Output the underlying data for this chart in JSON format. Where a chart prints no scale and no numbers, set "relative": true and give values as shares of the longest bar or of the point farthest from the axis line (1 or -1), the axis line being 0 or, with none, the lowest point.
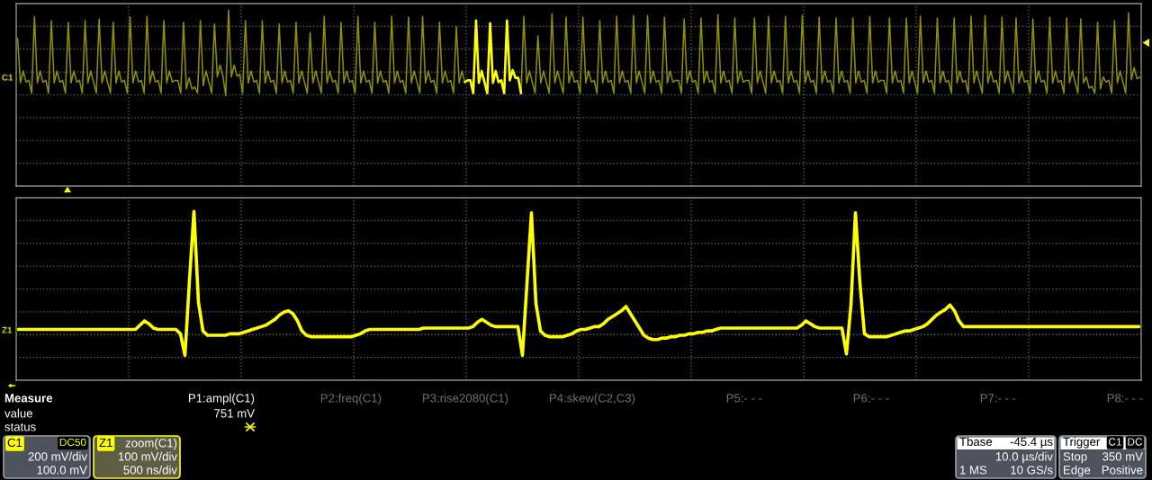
{
  "chart_data": [
    {
      "type": "line",
      "relative": true,
      "grid": true,
      "tick_labels": false,
      "categories": [
        null,
        null,
        null,
        null,
        null,
        null,
        null,
        null,
        null,
        null,
        null,
        null,
        null,
        null,
        null,
        null,
        null,
        null,
        null,
        null,
        null,
        null,
        null,
        null,
        null,
        null,
        null,
        null,
        null,
        null,
        null,
        null,
        null,
        null,
        null,
        null,
        null,
        null,
        null,
        null,
        null,
        null,
        null,
        null,
        null,
        null,
        null,
        null,
        null,
        null,
        null,
        null,
        null,
        null,
        null,
        null,
        null,
        null,
        null,
        null,
        null,
        null,
        null,
        null,
        null,
        null,
        null,
        null,
        null,
        null,
        null,
        null,
        null,
        null,
        null,
        null,
        null,
        null,
        null,
        null,
        null,
        null,
        null,
        null,
        null,
        null,
        null,
        null,
        null,
        null,
        null,
        null,
        null,
        null,
        null,
        null,
        null,
        null,
        null,
        null,
        null,
        null,
        null,
        null,
        null,
        null,
        null,
        null,
        null,
        null,
        null,
        null,
        null,
        null,
        null,
        null,
        null,
        null,
        null,
        null,
        null,
        null,
        null,
        null,
        null,
        null,
        null,
        null,
        null,
        null,
        null,
        null,
        null,
        null,
        null,
        null,
        null,
        null,
        null,
        null,
        null,
        null,
        null,
        null,
        null,
        null,
        null,
        null,
        null,
        null,
        null,
        null,
        null,
        null,
        null,
        null,
        null,
        null,
        null,
        null,
        null,
        null,
        null,
        null,
        null,
        null,
        null,
        null,
        null,
        null,
        null,
        null,
        null,
        null,
        null,
        null,
        null,
        null,
        null,
        null,
        null,
        null,
        null,
        null,
        null,
        null,
        null,
        null,
        null,
        null,
        null,
        null,
        null,
        null,
        null,
        null,
        null,
        null,
        null,
        null,
        null,
        null,
        null,
        null,
        null,
        null,
        null,
        null,
        null,
        null,
        null,
        null,
        null,
        null,
        null,
        null,
        null,
        null,
        null,
        null,
        null,
        null,
        null,
        null,
        null,
        null,
        null,
        null,
        null,
        null,
        null,
        null,
        null,
        null,
        null,
        null,
        null,
        null,
        null,
        null,
        null,
        null,
        null,
        null,
        null,
        null,
        null,
        null,
        null,
        null,
        null,
        null,
        null,
        null,
        null,
        null,
        null,
        null,
        null,
        null,
        null,
        null,
        null,
        null,
        null,
        null,
        null,
        null,
        null,
        null,
        null,
        null,
        null,
        null,
        null,
        null,
        null,
        null,
        null,
        null,
        null,
        null,
        null,
        null,
        null,
        null,
        null,
        null,
        null,
        null,
        null,
        null,
        null,
        null,
        null,
        null,
        null,
        null,
        null,
        null,
        null,
        null,
        null,
        null,
        null,
        null,
        null,
        null,
        null,
        null,
        null,
        null,
        null,
        null,
        null,
        null,
        null,
        null,
        null,
        null,
        null,
        null,
        null,
        null,
        null,
        null,
        null,
        null,
        null,
        null,
        null,
        null,
        null,
        null,
        null,
        null,
        null,
        null,
        null,
        null,
        null,
        null,
        null,
        null,
        null,
        null,
        null,
        null,
        null,
        null,
        null,
        null,
        null,
        null,
        null,
        null,
        null,
        null,
        null,
        null,
        null,
        null,
        null,
        null,
        null,
        null,
        null,
        null,
        null,
        null,
        null,
        null,
        null,
        null,
        null,
        null,
        null,
        null,
        null,
        null,
        null,
        null,
        null,
        null,
        null,
        null,
        null,
        null,
        null,
        null,
        null,
        null,
        null,
        null,
        null,
        null,
        null,
        null,
        null,
        null
      ],
      "series": [
        {
          "color": "#8f8f00",
          "values": [
            0.67,
            0.15,
            0.29,
            0.16,
            0.18,
            0.03,
            0.93,
            0.15,
            0.29,
            0.16,
            0.18,
            0.03,
            0.88,
            0.15,
            0.29,
            0.16,
            0.18,
            0.03,
            0.86,
            0.15,
            0.29,
            0.16,
            0.18,
            0.03,
            0.88,
            0.15,
            0.29,
            0.16,
            0.03,
            0.9,
            0.15,
            0.29,
            0.16,
            0.03,
            0.86,
            0.15,
            0.29,
            0.16,
            0.18,
            0.03,
            0.92,
            0.15,
            0.29,
            0.16,
            0.18,
            0.03,
            0.93,
            0.15,
            0.29,
            0.16,
            0.18,
            0.03,
            0.88,
            0.15,
            0.29,
            0.16,
            0.18,
            0.18,
            0.03,
            0.86,
            0.08,
            0.21,
            0.08,
            0.1,
            0.03,
            0.88,
            0.12,
            0.29,
            0.16,
            0.03,
            0.84,
            0.22,
            0.36,
            0.23,
            0.0,
            1.0,
            0.22,
            0.36,
            0.23,
            0.25,
            0.03,
            0.88,
            0.15,
            0.29,
            0.16,
            0.18,
            0.03,
            0.88,
            0.15,
            0.29,
            0.16,
            0.18,
            0.03,
            0.84,
            0.15,
            0.29,
            0.16,
            0.18,
            0.03,
            0.86,
            0.15,
            0.29,
            0.16,
            0.03,
            0.74,
            0.15,
            0.29,
            0.16,
            0.03,
            0.93,
            0.15,
            0.29,
            0.16,
            0.18,
            0.03,
            0.86,
            0.15,
            0.29,
            0.16,
            0.18,
            0.03,
            0.93,
            0.15,
            0.29,
            0.16,
            0.18,
            0.03,
            0.86,
            0.15,
            0.29,
            0.16,
            0.18,
            0.03,
            0.93,
            0.15,
            0.29,
            0.16,
            0.18,
            0.03,
            0.92,
            0.15,
            0.29,
            0.16,
            0.03,
            0.93,
            0.15,
            0.29,
            0.16,
            0.18,
            0.03,
            0.86,
            0.15,
            0.29,
            0.16,
            0.18,
            0.03,
            0.81,
            0.15,
            0.29,
            0.16,
            null,
            null,
            null,
            null,
            null,
            null,
            null,
            null,
            null,
            null,
            null,
            null,
            null,
            null,
            null,
            null,
            null,
            null,
            null,
            0.03,
            0.93,
            0.15,
            0.29,
            0.16,
            0.03,
            0.7,
            0.15,
            0.29,
            0.16,
            0.03,
            0.96,
            0.15,
            0.29,
            0.16,
            0.03,
            0.92,
            0.15,
            0.29,
            0.16,
            0.18,
            0.03,
            0.92,
            0.15,
            0.29,
            0.16,
            0.18,
            0.03,
            0.88,
            0.15,
            0.29,
            0.16,
            0.18,
            0.03,
            0.93,
            0.15,
            0.29,
            0.16,
            0.18,
            0.03,
            0.94,
            0.15,
            0.29,
            0.16,
            0.03,
            0.94,
            0.15,
            0.29,
            0.16,
            0.18,
            0.03,
            0.92,
            0.15,
            0.29,
            0.16,
            0.18,
            0.18,
            0.03,
            0.9,
            0.15,
            0.29,
            0.16,
            0.18,
            0.03,
            0.91,
            0.15,
            0.29,
            0.16,
            0.18,
            0.03,
            0.95,
            0.15,
            0.29,
            0.16,
            0.18,
            0.03,
            0.91,
            0.15,
            0.29,
            0.16,
            0.18,
            0.18,
            0.03,
            0.91,
            0.15,
            0.29,
            0.16,
            0.03,
            0.93,
            0.15,
            0.29,
            0.16,
            0.18,
            0.03,
            0.93,
            0.15,
            0.29,
            0.16,
            0.18,
            0.03,
            0.94,
            0.15,
            0.29,
            0.16,
            0.18,
            0.03,
            0.92,
            0.15,
            0.29,
            0.16,
            0.18,
            0.03,
            0.91,
            0.15,
            0.29,
            0.16,
            0.18,
            0.03,
            0.91,
            0.15,
            0.29,
            0.16,
            0.18,
            0.03,
            0.93,
            0.15,
            0.29,
            0.16,
            0.18,
            0.18,
            0.03,
            0.91,
            0.15,
            0.29,
            0.16,
            0.18,
            0.03,
            0.91,
            0.15,
            0.29,
            0.16,
            0.03,
            0.93,
            0.15,
            0.29,
            0.16,
            0.18,
            0.03,
            0.91,
            0.15,
            0.29,
            0.16,
            0.18,
            0.03,
            0.91,
            0.15,
            0.29,
            0.16,
            0.18,
            0.03,
            0.93,
            0.15,
            0.29,
            0.16,
            0.03,
            0.94,
            0.15,
            0.29,
            0.16,
            0.18,
            0.03,
            0.92,
            0.15,
            0.29,
            0.16,
            0.03,
            0.91,
            0.15,
            0.29,
            0.16,
            0.18,
            0.03,
            0.9,
            0.15,
            0.29,
            0.16,
            0.18,
            0.03,
            0.92,
            0.15,
            0.29,
            0.16,
            0.18,
            0.03,
            0.91,
            0.15,
            0.29,
            0.16,
            0.03,
            0.9,
            0.15,
            0.22,
            0.09,
            0.11,
            0.03,
            0.86,
            0.08,
            0.22,
            0.16,
            0.18,
            0.03,
            0.88,
            0.15,
            0.29,
            0.16,
            0.03,
            0.97,
            0.19,
            0.33,
            0.2,
            0.22
          ]
        },
        {
          "color": "#ffff00",
          "values": [
            null,
            null,
            null,
            null,
            null,
            null,
            null,
            null,
            null,
            null,
            null,
            null,
            null,
            null,
            null,
            null,
            null,
            null,
            null,
            null,
            null,
            null,
            null,
            null,
            null,
            null,
            null,
            null,
            null,
            null,
            null,
            null,
            null,
            null,
            null,
            null,
            null,
            null,
            null,
            null,
            null,
            null,
            null,
            null,
            null,
            null,
            null,
            null,
            null,
            null,
            null,
            null,
            null,
            null,
            null,
            null,
            null,
            null,
            null,
            null,
            null,
            null,
            null,
            null,
            null,
            null,
            null,
            null,
            null,
            null,
            null,
            null,
            null,
            null,
            null,
            null,
            null,
            null,
            null,
            null,
            null,
            null,
            null,
            null,
            null,
            null,
            null,
            null,
            null,
            null,
            null,
            null,
            null,
            null,
            null,
            null,
            null,
            null,
            null,
            null,
            null,
            null,
            null,
            null,
            null,
            null,
            null,
            null,
            null,
            null,
            null,
            null,
            null,
            null,
            null,
            null,
            null,
            null,
            null,
            null,
            null,
            null,
            null,
            null,
            null,
            null,
            null,
            null,
            null,
            null,
            null,
            null,
            null,
            null,
            null,
            null,
            null,
            null,
            null,
            null,
            null,
            null,
            null,
            null,
            null,
            null,
            null,
            null,
            null,
            null,
            null,
            null,
            null,
            null,
            null,
            null,
            null,
            null,
            null,
            0.16,
            0.18,
            0.18,
            0.03,
            0.88,
            0.15,
            0.29,
            0.16,
            0.03,
            0.85,
            0.15,
            0.29,
            0.16,
            0.18,
            0.03,
            0.88,
            0.18,
            0.3,
            0.21,
            0.21,
            0.03,
            null,
            null,
            null,
            null,
            null,
            null,
            null,
            null,
            null,
            null,
            null,
            null,
            null,
            null,
            null,
            null,
            null,
            null,
            null,
            null,
            null,
            null,
            null,
            null,
            null,
            null,
            null,
            null,
            null,
            null,
            null,
            null,
            null,
            null,
            null,
            null,
            null,
            null,
            null,
            null,
            null,
            null,
            null,
            null,
            null,
            null,
            null,
            null,
            null,
            null,
            null,
            null,
            null,
            null,
            null,
            null,
            null,
            null,
            null,
            null,
            null,
            null,
            null,
            null,
            null,
            null,
            null,
            null,
            null,
            null,
            null,
            null,
            null,
            null,
            null,
            null,
            null,
            null,
            null,
            null,
            null,
            null,
            null,
            null,
            null,
            null,
            null,
            null,
            null,
            null,
            null,
            null,
            null,
            null,
            null,
            null,
            null,
            null,
            null,
            null,
            null,
            null,
            null,
            null,
            null,
            null,
            null,
            null,
            null,
            null,
            null,
            null,
            null,
            null,
            null,
            null,
            null,
            null,
            null,
            null,
            null,
            null,
            null,
            null,
            null,
            null,
            null,
            null,
            null,
            null,
            null,
            null,
            null,
            null,
            null,
            null,
            null,
            null,
            null,
            null,
            null,
            null,
            null,
            null,
            null,
            null,
            null,
            null,
            null,
            null,
            null,
            null,
            null,
            null,
            null,
            null,
            null,
            null,
            null,
            null,
            null,
            null,
            null,
            null,
            null,
            null,
            null,
            null,
            null,
            null,
            null,
            null,
            null,
            null,
            null,
            null,
            null,
            null,
            null,
            null,
            null,
            null,
            null,
            null,
            null,
            null,
            null,
            null,
            null,
            null,
            null,
            null,
            null,
            null,
            null,
            null,
            null,
            null,
            null,
            null,
            null,
            null,
            null,
            null,
            null,
            null,
            null,
            null,
            null,
            null,
            null,
            null,
            null,
            null,
            null,
            null,
            null,
            null,
            null,
            null
          ]
        }
      ],
      "annotations": [
        "C1",
        "C1",
        "DC50",
        "200 mV/div",
        "100.0 mV",
        "Tbase",
        "-45.4 µs",
        "10.0 µs/div",
        "1 MS",
        "10 GS/s",
        "Trigger",
        "C1",
        "DC",
        "Stop",
        "350 mV",
        "Edge",
        "Positive"
      ]
    },
    {
      "type": "line",
      "relative": true,
      "grid": true,
      "tick_labels": false,
      "categories": [
        null,
        null,
        null,
        null,
        null,
        null,
        null,
        null,
        null,
        null,
        null,
        null,
        null,
        null,
        null,
        null,
        null,
        null,
        null,
        null,
        null,
        null,
        null,
        null,
        null,
        null,
        null,
        null,
        null,
        null,
        null,
        null,
        null,
        null,
        null,
        null,
        null,
        null,
        null,
        null,
        null,
        null,
        null,
        null,
        null,
        null,
        null,
        null,
        null,
        null,
        null,
        null,
        null,
        null,
        null,
        null,
        null,
        null,
        null,
        null,
        null,
        null,
        null,
        null,
        null,
        null,
        null,
        null,
        null,
        null,
        null,
        null,
        null,
        null,
        null,
        null,
        null,
        null,
        null,
        null,
        null,
        null,
        null,
        null,
        null,
        null,
        null,
        null,
        null,
        null,
        null,
        null,
        null,
        null,
        null,
        null,
        null,
        null,
        null,
        null,
        null,
        null,
        null,
        null,
        null,
        null,
        null,
        null,
        null,
        null,
        null,
        null,
        null,
        null,
        null,
        null,
        null,
        null,
        null,
        null,
        null,
        null,
        null,
        null,
        null,
        null,
        null,
        null,
        null,
        null,
        null,
        null,
        null,
        null,
        null,
        null,
        null,
        null,
        null,
        null,
        null,
        null,
        null,
        null,
        null,
        null,
        null,
        null,
        null,
        null,
        null,
        null,
        null,
        null,
        null,
        null,
        null,
        null,
        null,
        null,
        null,
        null,
        null,
        null,
        null,
        null,
        null,
        null,
        null,
        null,
        null,
        null,
        null,
        null,
        null,
        null,
        null,
        null,
        null,
        null,
        null,
        null,
        null,
        null,
        null,
        null,
        null,
        null,
        null,
        null,
        null,
        null,
        null,
        null,
        null,
        null,
        null,
        null,
        null,
        null,
        null,
        null,
        null,
        null,
        null,
        null,
        null,
        null,
        null,
        null,
        null,
        null,
        null,
        null,
        null,
        null,
        null,
        null,
        null,
        null,
        null,
        null,
        null,
        null,
        null,
        null,
        null,
        null,
        null,
        null,
        null,
        null,
        null,
        null,
        null,
        null,
        null,
        null,
        null,
        null,
        null,
        null,
        null,
        null,
        null,
        null,
        null,
        null,
        null,
        null
      ],
      "series": [
        {
          "color": "#ffff00",
          "values": [
            0.18,
            0.18,
            0.18,
            0.18,
            0.18,
            0.18,
            0.18,
            0.18,
            0.18,
            0.18,
            0.18,
            0.18,
            0.18,
            0.18,
            0.18,
            0.18,
            0.18,
            0.18,
            0.18,
            0.18,
            0.18,
            0.18,
            0.18,
            0.18,
            0.18,
            0.18,
            0.18,
            0.21,
            0.24,
            0.22,
            0.19,
            0.18,
            0.18,
            0.18,
            0.18,
            0.18,
            0.15,
            0.0,
            0.52,
            1.0,
            0.37,
            0.17,
            0.14,
            0.14,
            0.14,
            0.14,
            0.14,
            0.15,
            0.15,
            0.15,
            0.16,
            0.17,
            0.18,
            0.19,
            0.2,
            0.21,
            0.23,
            0.25,
            0.28,
            0.3,
            0.31,
            0.29,
            0.24,
            0.17,
            0.14,
            0.13,
            0.13,
            0.13,
            0.13,
            0.13,
            0.13,
            0.13,
            0.13,
            0.13,
            0.13,
            0.14,
            0.15,
            0.17,
            0.18,
            0.18,
            0.18,
            0.18,
            0.18,
            0.18,
            0.18,
            0.18,
            0.18,
            0.18,
            0.18,
            0.18,
            0.19,
            0.19,
            0.19,
            0.19,
            0.19,
            0.19,
            0.19,
            0.19,
            0.19,
            0.19,
            0.19,
            0.2,
            0.23,
            0.25,
            0.23,
            0.21,
            0.2,
            0.2,
            0.2,
            0.2,
            0.2,
            0.2,
            0.0,
            0.5,
            0.99,
            0.36,
            0.17,
            0.14,
            0.13,
            0.13,
            0.13,
            0.13,
            0.14,
            0.15,
            0.17,
            0.18,
            0.18,
            0.19,
            0.2,
            0.2,
            0.22,
            0.25,
            0.27,
            0.29,
            0.31,
            0.34,
            0.29,
            0.24,
            0.19,
            0.14,
            0.12,
            0.11,
            0.11,
            0.12,
            0.12,
            0.13,
            0.13,
            0.14,
            0.14,
            0.15,
            0.15,
            0.16,
            0.16,
            0.17,
            0.17,
            0.18,
            0.19,
            0.19,
            0.19,
            0.19,
            0.19,
            0.19,
            0.19,
            0.19,
            0.19,
            0.19,
            0.19,
            0.19,
            0.19,
            0.19,
            0.19,
            0.19,
            0.19,
            0.19,
            0.21,
            0.24,
            0.22,
            0.2,
            0.19,
            0.19,
            0.19,
            0.19,
            0.19,
            0.19,
            0.01,
            0.35,
            0.99,
            0.5,
            0.15,
            0.13,
            0.13,
            0.13,
            0.13,
            0.13,
            0.14,
            0.15,
            0.16,
            0.17,
            0.17,
            0.18,
            0.19,
            0.2,
            0.22,
            0.25,
            0.28,
            0.3,
            0.32,
            0.35,
            0.31,
            0.24,
            0.2,
            0.2,
            0.2,
            0.2,
            0.2,
            0.2,
            0.2,
            0.2,
            0.2,
            0.2,
            0.2,
            0.2,
            0.2,
            0.2,
            0.2,
            0.2,
            0.2,
            0.2,
            0.2,
            0.2,
            0.2,
            0.2,
            0.2,
            0.2,
            0.2,
            0.2,
            0.2,
            0.2,
            0.2,
            0.2,
            0.2,
            0.2,
            0.2,
            0.2,
            0.2,
            0.2,
            0.2,
            0.2,
            0.2,
            0.2
          ]
        }
      ],
      "annotations": [
        "Z1",
        "Z1",
        "zoom(C1)",
        "100 mV/div",
        "500 ns/div",
        "Measure",
        "value",
        "status",
        "P1:ampl(C1)",
        "751 mV",
        "P2:freq(C1)",
        "P3:rise2080(C1)",
        "P4:skew(C2,C3)",
        "P5:- - -",
        "P6:- - -",
        "P7:- - -",
        "P8:- - -"
      ]
    }
  ]
}
